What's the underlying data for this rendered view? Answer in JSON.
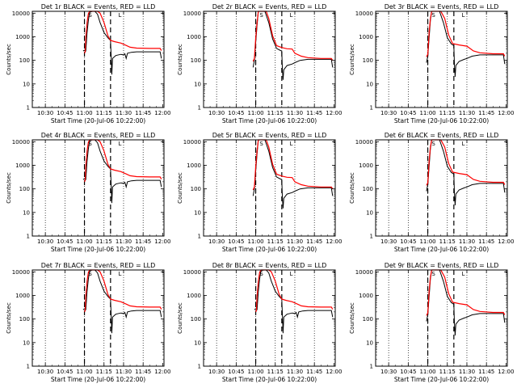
{
  "chart_data": [
    {
      "type": "line",
      "title": "Det 1r BLACK = Events, RED = LLD"
    },
    {
      "type": "line",
      "title": "Det 2r BLACK = Events, RED = LLD"
    },
    {
      "type": "line",
      "title": "Det 3r BLACK = Events, RED = LLD"
    },
    {
      "type": "line",
      "title": "Det 4r BLACK = Events, RED = LLD"
    },
    {
      "type": "line",
      "title": "Det 5r BLACK = Events, RED = LLD"
    },
    {
      "type": "line",
      "title": "Det 6r BLACK = Events, RED = LLD"
    },
    {
      "type": "line",
      "title": "Det 7r BLACK = Events, RED = LLD"
    },
    {
      "type": "line",
      "title": "Det 8r BLACK = Events, RED = LLD"
    },
    {
      "type": "line",
      "title": "Det 9r BLACK = Events, RED = LLD"
    }
  ],
  "common": {
    "xlabel": "Start Time (20-Jul-06 10:22:00)",
    "ylabel": "Counts/sec",
    "x_ticks": [
      "10:30",
      "10:45",
      "11:00",
      "11:15",
      "11:30",
      "11:45",
      "12:00"
    ],
    "x_tick_minutes": [
      630,
      645,
      660,
      675,
      690,
      705,
      720
    ],
    "xlim": [
      620,
      721
    ],
    "y_ticks": [
      "1",
      "10",
      "100",
      "1000",
      "10000"
    ],
    "y_tick_values": [
      1,
      10,
      100,
      1000,
      10000
    ],
    "ylim": [
      1,
      12000
    ],
    "y_scale": "log",
    "dotted_lines_x": [
      630,
      645,
      660,
      675,
      690,
      705
    ],
    "dashed_lines_x": [
      660,
      680
    ],
    "small_markers": [
      "S",
      "L"
    ],
    "colors": {
      "events": "#000000",
      "lld": "#ff0000",
      "axes": "#000000",
      "background": "#ffffff"
    }
  }
}
